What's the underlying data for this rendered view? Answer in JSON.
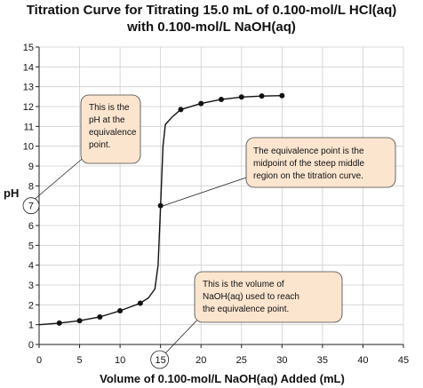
{
  "chart_data": {
    "type": "line",
    "title": "Titration Curve for Titrating 15.0 mL of 0.100-mol/L HCl(aq)",
    "subtitle": "with 0.100-mol/L NaOH(aq)",
    "xlabel": "Volume of 0.100-mol/L NaOH(aq) Added (mL)",
    "ylabel": "pH",
    "xlim": [
      0,
      45
    ],
    "ylim": [
      0,
      15
    ],
    "xticks": [
      "0",
      "5",
      "10",
      "15",
      "20",
      "25",
      "30",
      "35",
      "40",
      "45"
    ],
    "yticks": [
      "0",
      "1",
      "2",
      "3",
      "4",
      "5",
      "6",
      "7",
      "8",
      "9",
      "10",
      "11",
      "12",
      "13",
      "14",
      "15"
    ],
    "grid": true,
    "highlighted_x_tick": "15",
    "highlighted_y_tick": "7",
    "series": [
      {
        "curve": [
          {
            "x": 0,
            "y": 1.0
          },
          {
            "x": 2.5,
            "y": 1.08
          },
          {
            "x": 5,
            "y": 1.2
          },
          {
            "x": 7.5,
            "y": 1.39
          },
          {
            "x": 10,
            "y": 1.7
          },
          {
            "x": 12.5,
            "y": 2.08
          },
          {
            "x": 13.5,
            "y": 2.35
          },
          {
            "x": 14.3,
            "y": 2.8
          },
          {
            "x": 14.7,
            "y": 4.0
          },
          {
            "x": 15,
            "y": 7.0
          },
          {
            "x": 15.3,
            "y": 10.0
          },
          {
            "x": 15.6,
            "y": 11.1
          },
          {
            "x": 16.5,
            "y": 11.5
          },
          {
            "x": 17.5,
            "y": 11.85
          },
          {
            "x": 20,
            "y": 12.15
          },
          {
            "x": 22.5,
            "y": 12.36
          },
          {
            "x": 25,
            "y": 12.48
          },
          {
            "x": 27.5,
            "y": 12.53
          },
          {
            "x": 30,
            "y": 12.55
          }
        ],
        "points": [
          {
            "x": 2.5,
            "y": 1.08
          },
          {
            "x": 5,
            "y": 1.2
          },
          {
            "x": 7.5,
            "y": 1.39
          },
          {
            "x": 10,
            "y": 1.7
          },
          {
            "x": 12.5,
            "y": 2.08
          },
          {
            "x": 15,
            "y": 7.0
          },
          {
            "x": 17.5,
            "y": 11.85
          },
          {
            "x": 20,
            "y": 12.15
          },
          {
            "x": 22.5,
            "y": 12.36
          },
          {
            "x": 25,
            "y": 12.48
          },
          {
            "x": 27.5,
            "y": 12.53
          },
          {
            "x": 30,
            "y": 12.55
          }
        ]
      }
    ],
    "annotations": [
      {
        "id": "ph-equivalence",
        "lines": [
          "This is the",
          "pH at the",
          "equivalence",
          "point."
        ],
        "target": "y-tick-7"
      },
      {
        "id": "equivalence-point",
        "lines": [
          "The equivalence point is the",
          "midpoint of the steep middle",
          "region on the titration curve."
        ],
        "target": "point-15-7"
      },
      {
        "id": "volume-equivalence",
        "lines": [
          "This is the volume of",
          "NaOH(aq) used to reach",
          "the equivalence point."
        ],
        "target": "x-tick-15"
      }
    ],
    "colors": {
      "note_fill": "#fbe5cf",
      "curve": "#111111",
      "grid": "#cfcfcf"
    }
  }
}
